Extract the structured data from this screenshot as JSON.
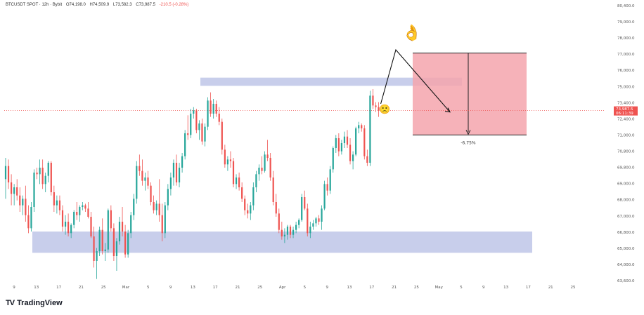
{
  "header": {
    "symbol": "BTCUSDT SPOT · 12h · Bybit",
    "open": "O74,198.0",
    "high": "H74,509.9",
    "low": "L73,582.3",
    "close": "C73,987.5",
    "change": "-210.5 (-0.28%)"
  },
  "brand": {
    "logo": "TV",
    "name": "TradingView"
  },
  "emoji": {
    "ok": "👌",
    "sad": "🙁"
  },
  "colors": {
    "up": "#26a69a",
    "down": "#ef5350",
    "zone": "#aab4e0",
    "target": "#f4a4ad",
    "price_line": "#ef5350"
  },
  "chart_data": {
    "type": "candlestick",
    "symbol": "BTCUSDT",
    "interval": "12h",
    "ylim": [
      63600,
      80400
    ],
    "y_ticks": [
      "80,400.0",
      "79,000.0",
      "78,000.0",
      "77,000.0",
      "76,000.0",
      "75,000.0",
      "73,400.0",
      "72,400.0",
      "71,000.0",
      "70,800.0",
      "69,800.0",
      "69,000.0",
      "68,000.0",
      "67,000.0",
      "66,800.0",
      "65,000.0",
      "64,000.0",
      "63,600.0"
    ],
    "x_ticks": [
      "9",
      "13",
      "17",
      "21",
      "25",
      "Mar",
      "5",
      "9",
      "13",
      "17",
      "21",
      "25",
      "Apr",
      "5",
      "9",
      "13",
      "17",
      "21",
      "25",
      "May",
      "5",
      "9",
      "13",
      "17",
      "21",
      "25"
    ],
    "last_price": {
      "label": "73,987.5",
      "sub": "06:11:39",
      "value": 73987.5
    },
    "zones": [
      {
        "name": "resistance",
        "y_low": 75500,
        "y_high": 76000
      },
      {
        "name": "support",
        "y_low": 65300,
        "y_high": 66600
      }
    ],
    "target_box": {
      "y_top": 77500,
      "y_bottom": 72500,
      "label": "-6.75%"
    },
    "candles": [
      [
        69800,
        71100,
        68600,
        70600
      ],
      [
        70600,
        71000,
        69200,
        69600
      ],
      [
        69600,
        70100,
        68200,
        68900
      ],
      [
        68900,
        69500,
        68200,
        69300
      ],
      [
        69300,
        69800,
        68500,
        68800
      ],
      [
        68800,
        69300,
        67800,
        68200
      ],
      [
        68200,
        68800,
        67600,
        68600
      ],
      [
        68600,
        69400,
        67200,
        67600
      ],
      [
        67600,
        68200,
        66500,
        66800
      ],
      [
        66800,
        68400,
        66600,
        68100
      ],
      [
        68100,
        70400,
        67800,
        70200
      ],
      [
        70200,
        70500,
        69800,
        70100
      ],
      [
        70100,
        71000,
        69500,
        70500
      ],
      [
        70500,
        71000,
        69200,
        69500
      ],
      [
        69500,
        70200,
        69000,
        70000
      ],
      [
        70000,
        70900,
        69600,
        70800
      ],
      [
        70800,
        70900,
        68800,
        69000
      ],
      [
        69000,
        69400,
        67800,
        68200
      ],
      [
        68200,
        68800,
        67700,
        68500
      ],
      [
        68500,
        68800,
        67600,
        67900
      ],
      [
        67900,
        68200,
        66600,
        66900
      ],
      [
        66900,
        67600,
        66400,
        67200
      ],
      [
        67200,
        67700,
        66300,
        66500
      ],
      [
        66500,
        67100,
        66200,
        67000
      ],
      [
        67000,
        67900,
        66800,
        67800
      ],
      [
        67800,
        68400,
        67300,
        67600
      ],
      [
        67600,
        68200,
        67200,
        68100
      ],
      [
        68100,
        68400,
        67900,
        68200
      ],
      [
        68200,
        68300,
        67800,
        68000
      ],
      [
        68000,
        68400,
        67400,
        67500
      ],
      [
        67500,
        67800,
        66200,
        66300
      ],
      [
        66300,
        66900,
        64400,
        64800
      ],
      [
        64800,
        65600,
        63700,
        65400
      ],
      [
        65400,
        66900,
        65100,
        66700
      ],
      [
        66700,
        67400,
        65200,
        65400
      ],
      [
        65400,
        65900,
        64800,
        65500
      ],
      [
        65500,
        68000,
        65300,
        67900
      ],
      [
        67900,
        68200,
        66600,
        66800
      ],
      [
        66800,
        67100,
        64800,
        65100
      ],
      [
        65100,
        66200,
        64200,
        66000
      ],
      [
        66000,
        67500,
        65800,
        67200
      ],
      [
        67200,
        68100,
        66300,
        66600
      ],
      [
        66600,
        67000,
        65000,
        65200
      ],
      [
        65200,
        66700,
        65000,
        66500
      ],
      [
        66500,
        67800,
        66200,
        67600
      ],
      [
        67600,
        68900,
        67300,
        68600
      ],
      [
        68600,
        70900,
        68300,
        70600
      ],
      [
        70600,
        71300,
        70000,
        70300
      ],
      [
        70300,
        71000,
        69400,
        69700
      ],
      [
        69700,
        70200,
        69100,
        69900
      ],
      [
        69900,
        70300,
        69200,
        69400
      ],
      [
        69400,
        69600,
        68200,
        68400
      ],
      [
        68400,
        68800,
        67700,
        67900
      ],
      [
        67900,
        68500,
        67600,
        68300
      ],
      [
        68300,
        69800,
        67200,
        67600
      ],
      [
        67600,
        68300,
        66000,
        66500
      ],
      [
        66500,
        68400,
        66200,
        68200
      ],
      [
        68200,
        69500,
        67900,
        69200
      ],
      [
        69200,
        70200,
        68800,
        69900
      ],
      [
        69900,
        71000,
        69400,
        70800
      ],
      [
        70800,
        71300,
        69400,
        69600
      ],
      [
        69600,
        70800,
        69300,
        70500
      ],
      [
        70500,
        71400,
        70200,
        71200
      ],
      [
        71200,
        72800,
        71000,
        72600
      ],
      [
        72600,
        73700,
        72200,
        72500
      ],
      [
        72500,
        74100,
        72300,
        73800
      ],
      [
        73800,
        74200,
        73500,
        74000
      ],
      [
        74000,
        74100,
        72600,
        72800
      ],
      [
        72800,
        73400,
        72200,
        73200
      ],
      [
        73200,
        73500,
        71900,
        72100
      ],
      [
        72100,
        73200,
        71800,
        73000
      ],
      [
        73000,
        74800,
        72800,
        74600
      ],
      [
        74600,
        75100,
        73600,
        73800
      ],
      [
        73800,
        74700,
        73500,
        74400
      ],
      [
        74400,
        74600,
        73600,
        73800
      ],
      [
        73800,
        74200,
        73100,
        73300
      ],
      [
        73300,
        73500,
        71300,
        71600
      ],
      [
        71600,
        71900,
        70500,
        70700
      ],
      [
        70700,
        71200,
        70300,
        71000
      ],
      [
        71000,
        71500,
        70500,
        70900
      ],
      [
        70900,
        71100,
        69300,
        69500
      ],
      [
        69500,
        70100,
        69200,
        69900
      ],
      [
        69900,
        70200,
        69100,
        69300
      ],
      [
        69300,
        69600,
        68400,
        68600
      ],
      [
        68600,
        68800,
        67600,
        67900
      ],
      [
        67900,
        68300,
        67400,
        67700
      ],
      [
        67700,
        68400,
        67300,
        68200
      ],
      [
        68200,
        69600,
        67900,
        69300
      ],
      [
        69300,
        70300,
        69000,
        70100
      ],
      [
        70100,
        70700,
        69700,
        70500
      ],
      [
        70500,
        71200,
        70100,
        70300
      ],
      [
        70300,
        71500,
        70200,
        71300
      ],
      [
        71300,
        72200,
        70900,
        71100
      ],
      [
        71100,
        71400,
        69700,
        69900
      ],
      [
        69900,
        70300,
        68200,
        68400
      ],
      [
        68400,
        68900,
        67500,
        67700
      ],
      [
        67700,
        68000,
        66500,
        66700
      ],
      [
        66700,
        67200,
        66100,
        66300
      ],
      [
        66300,
        66800,
        65900,
        66400
      ],
      [
        66400,
        67000,
        66100,
        66900
      ],
      [
        66900,
        67000,
        66200,
        66400
      ],
      [
        66400,
        66900,
        66200,
        66700
      ],
      [
        66700,
        67200,
        66500,
        67000
      ],
      [
        67000,
        67400,
        66800,
        67300
      ],
      [
        67300,
        68900,
        67200,
        68700
      ],
      [
        68700,
        69100,
        67900,
        68000
      ],
      [
        68000,
        68300,
        66300,
        66500
      ],
      [
        66500,
        67200,
        66200,
        66900
      ],
      [
        66900,
        67300,
        66700,
        67100
      ],
      [
        67100,
        67500,
        66900,
        67400
      ],
      [
        67400,
        67600,
        67000,
        67200
      ],
      [
        67200,
        68200,
        66700,
        68000
      ],
      [
        68000,
        69700,
        67900,
        69500
      ],
      [
        69500,
        69900,
        68800,
        69100
      ],
      [
        69100,
        70600,
        68900,
        70400
      ],
      [
        70400,
        71800,
        70200,
        71700
      ],
      [
        71700,
        72500,
        71400,
        72300
      ],
      [
        72300,
        72600,
        71200,
        71500
      ],
      [
        71500,
        72200,
        71300,
        72000
      ],
      [
        72000,
        72700,
        71700,
        72400
      ],
      [
        72400,
        72800,
        71700,
        71900
      ],
      [
        71900,
        72300,
        70700,
        70900
      ],
      [
        70900,
        71500,
        70400,
        71300
      ],
      [
        71300,
        73000,
        71200,
        72900
      ],
      [
        72900,
        73300,
        72600,
        73100
      ],
      [
        73100,
        73200,
        72700,
        72900
      ],
      [
        72900,
        73100,
        71000,
        71200
      ],
      [
        71200,
        71600,
        70600,
        70800
      ],
      [
        70800,
        75200,
        70600,
        74900
      ],
      [
        74900,
        75300,
        74100,
        74300
      ],
      [
        74300,
        74500,
        73900,
        74200
      ],
      [
        74200,
        74500,
        73600,
        73987.5
      ]
    ]
  }
}
